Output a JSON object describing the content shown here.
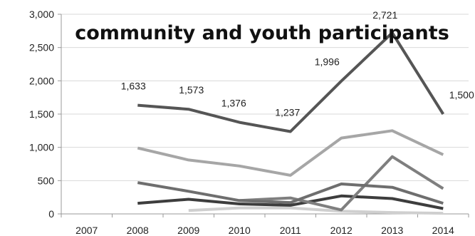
{
  "chart_data": {
    "type": "line",
    "title": "community and youth participants",
    "xlabel": "",
    "ylabel": "",
    "categories": [
      "2007",
      "2008",
      "2009",
      "2010",
      "2011",
      "2012",
      "2013",
      "2014"
    ],
    "y_tick_labels": [
      "0",
      "500",
      "1,000",
      "1,500",
      "2,000",
      "2,500",
      "3,000"
    ],
    "ylim": [
      0,
      3000
    ],
    "grid": "horizontal",
    "legend": "none",
    "series": [
      {
        "values": [
          null,
          1633,
          1573,
          1376,
          1237,
          1996,
          2721,
          1500
        ],
        "labels": [
          "",
          "1,633",
          "1,573",
          "1,376",
          "1,237",
          "1,996",
          "2,721",
          "1,500"
        ],
        "color": "#555555"
      },
      {
        "values": [
          null,
          990,
          810,
          720,
          580,
          1140,
          1250,
          890
        ],
        "color": "#a6a6a6"
      },
      {
        "values": [
          null,
          470,
          340,
          200,
          170,
          450,
          400,
          160
        ],
        "color": "#6e6e6e"
      },
      {
        "values": [
          null,
          null,
          null,
          200,
          240,
          60,
          860,
          380
        ],
        "color": "#7f7f7f"
      },
      {
        "values": [
          null,
          160,
          220,
          150,
          130,
          270,
          230,
          80
        ],
        "color": "#3d3d3d"
      },
      {
        "values": [
          null,
          null,
          50,
          90,
          90,
          40,
          20,
          10
        ],
        "color": "#cfcfcf"
      }
    ]
  }
}
